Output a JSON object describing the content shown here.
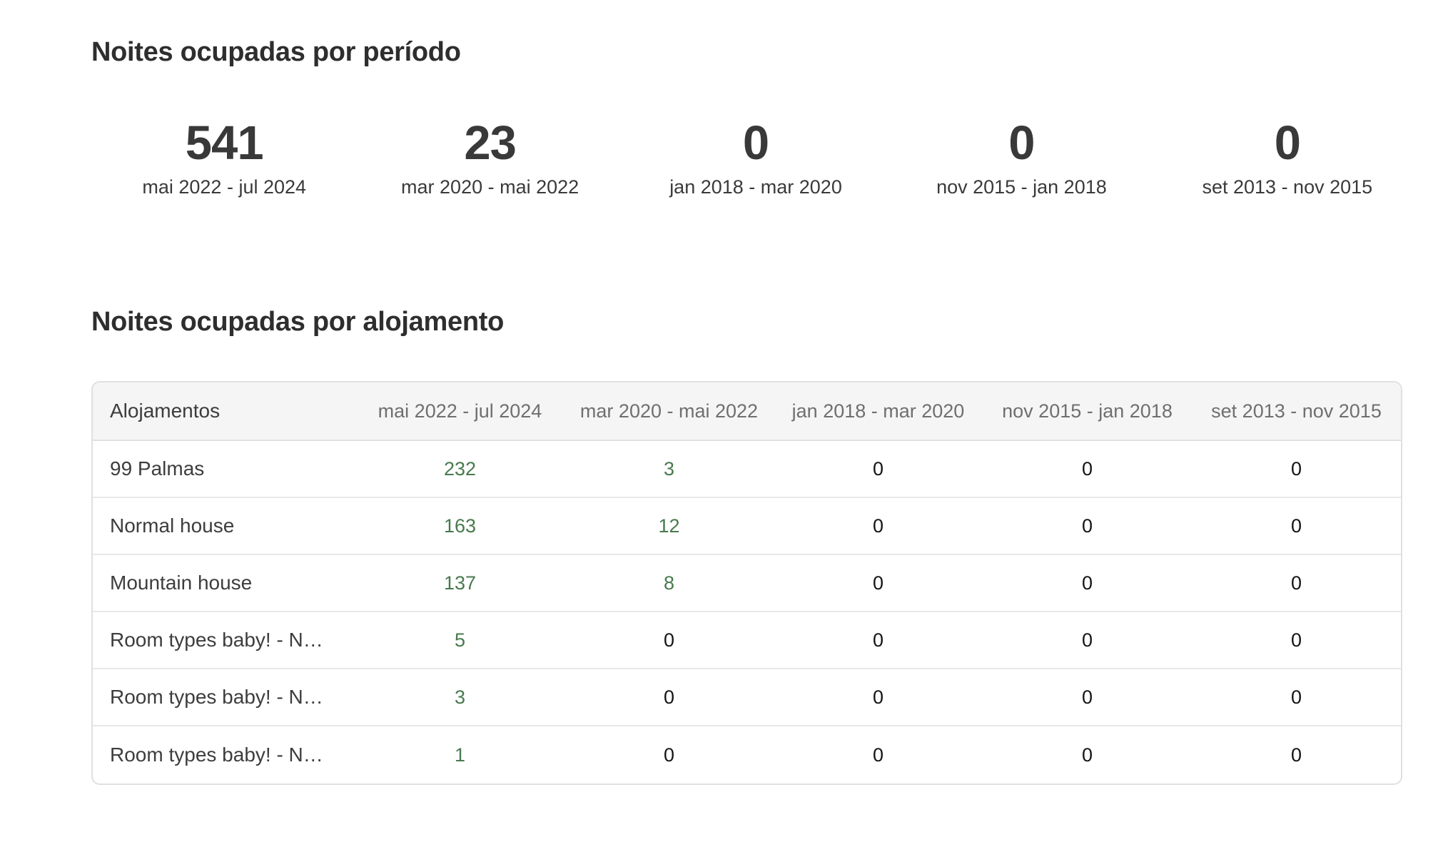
{
  "colors": {
    "positive_value": "#487a4e",
    "zero_value": "#151515",
    "header_text": "#6f6f6f",
    "title_text": "#2e2e2e",
    "table_header_bg": "#f5f5f5",
    "table_border": "#e0e0e0"
  },
  "period_section": {
    "title": "Noites ocupadas por período",
    "stats": [
      {
        "value": "541",
        "label": "mai 2022 - jul 2024"
      },
      {
        "value": "23",
        "label": "mar 2020 - mai 2022"
      },
      {
        "value": "0",
        "label": "jan 2018 - mar 2020"
      },
      {
        "value": "0",
        "label": "nov 2015 - jan 2018"
      },
      {
        "value": "0",
        "label": "set 2013 - nov 2015"
      }
    ]
  },
  "accommodation_section": {
    "title": "Noites ocupadas por alojamento",
    "table": {
      "columns": [
        "Alojamentos",
        "mai 2022 - jul 2024",
        "mar 2020 - mai 2022",
        "jan 2018 - mar 2020",
        "nov 2015 - jan 2018",
        "set 2013 - nov 2015"
      ],
      "rows": [
        {
          "name": "99 Palmas",
          "values": [
            232,
            3,
            0,
            0,
            0
          ]
        },
        {
          "name": "Normal house",
          "values": [
            163,
            12,
            0,
            0,
            0
          ]
        },
        {
          "name": "Mountain house",
          "values": [
            137,
            8,
            0,
            0,
            0
          ]
        },
        {
          "name": "Room types baby! - N…",
          "values": [
            5,
            0,
            0,
            0,
            0
          ]
        },
        {
          "name": "Room types baby! - N…",
          "values": [
            3,
            0,
            0,
            0,
            0
          ]
        },
        {
          "name": "Room types baby! - N…",
          "values": [
            1,
            0,
            0,
            0,
            0
          ]
        }
      ]
    }
  }
}
